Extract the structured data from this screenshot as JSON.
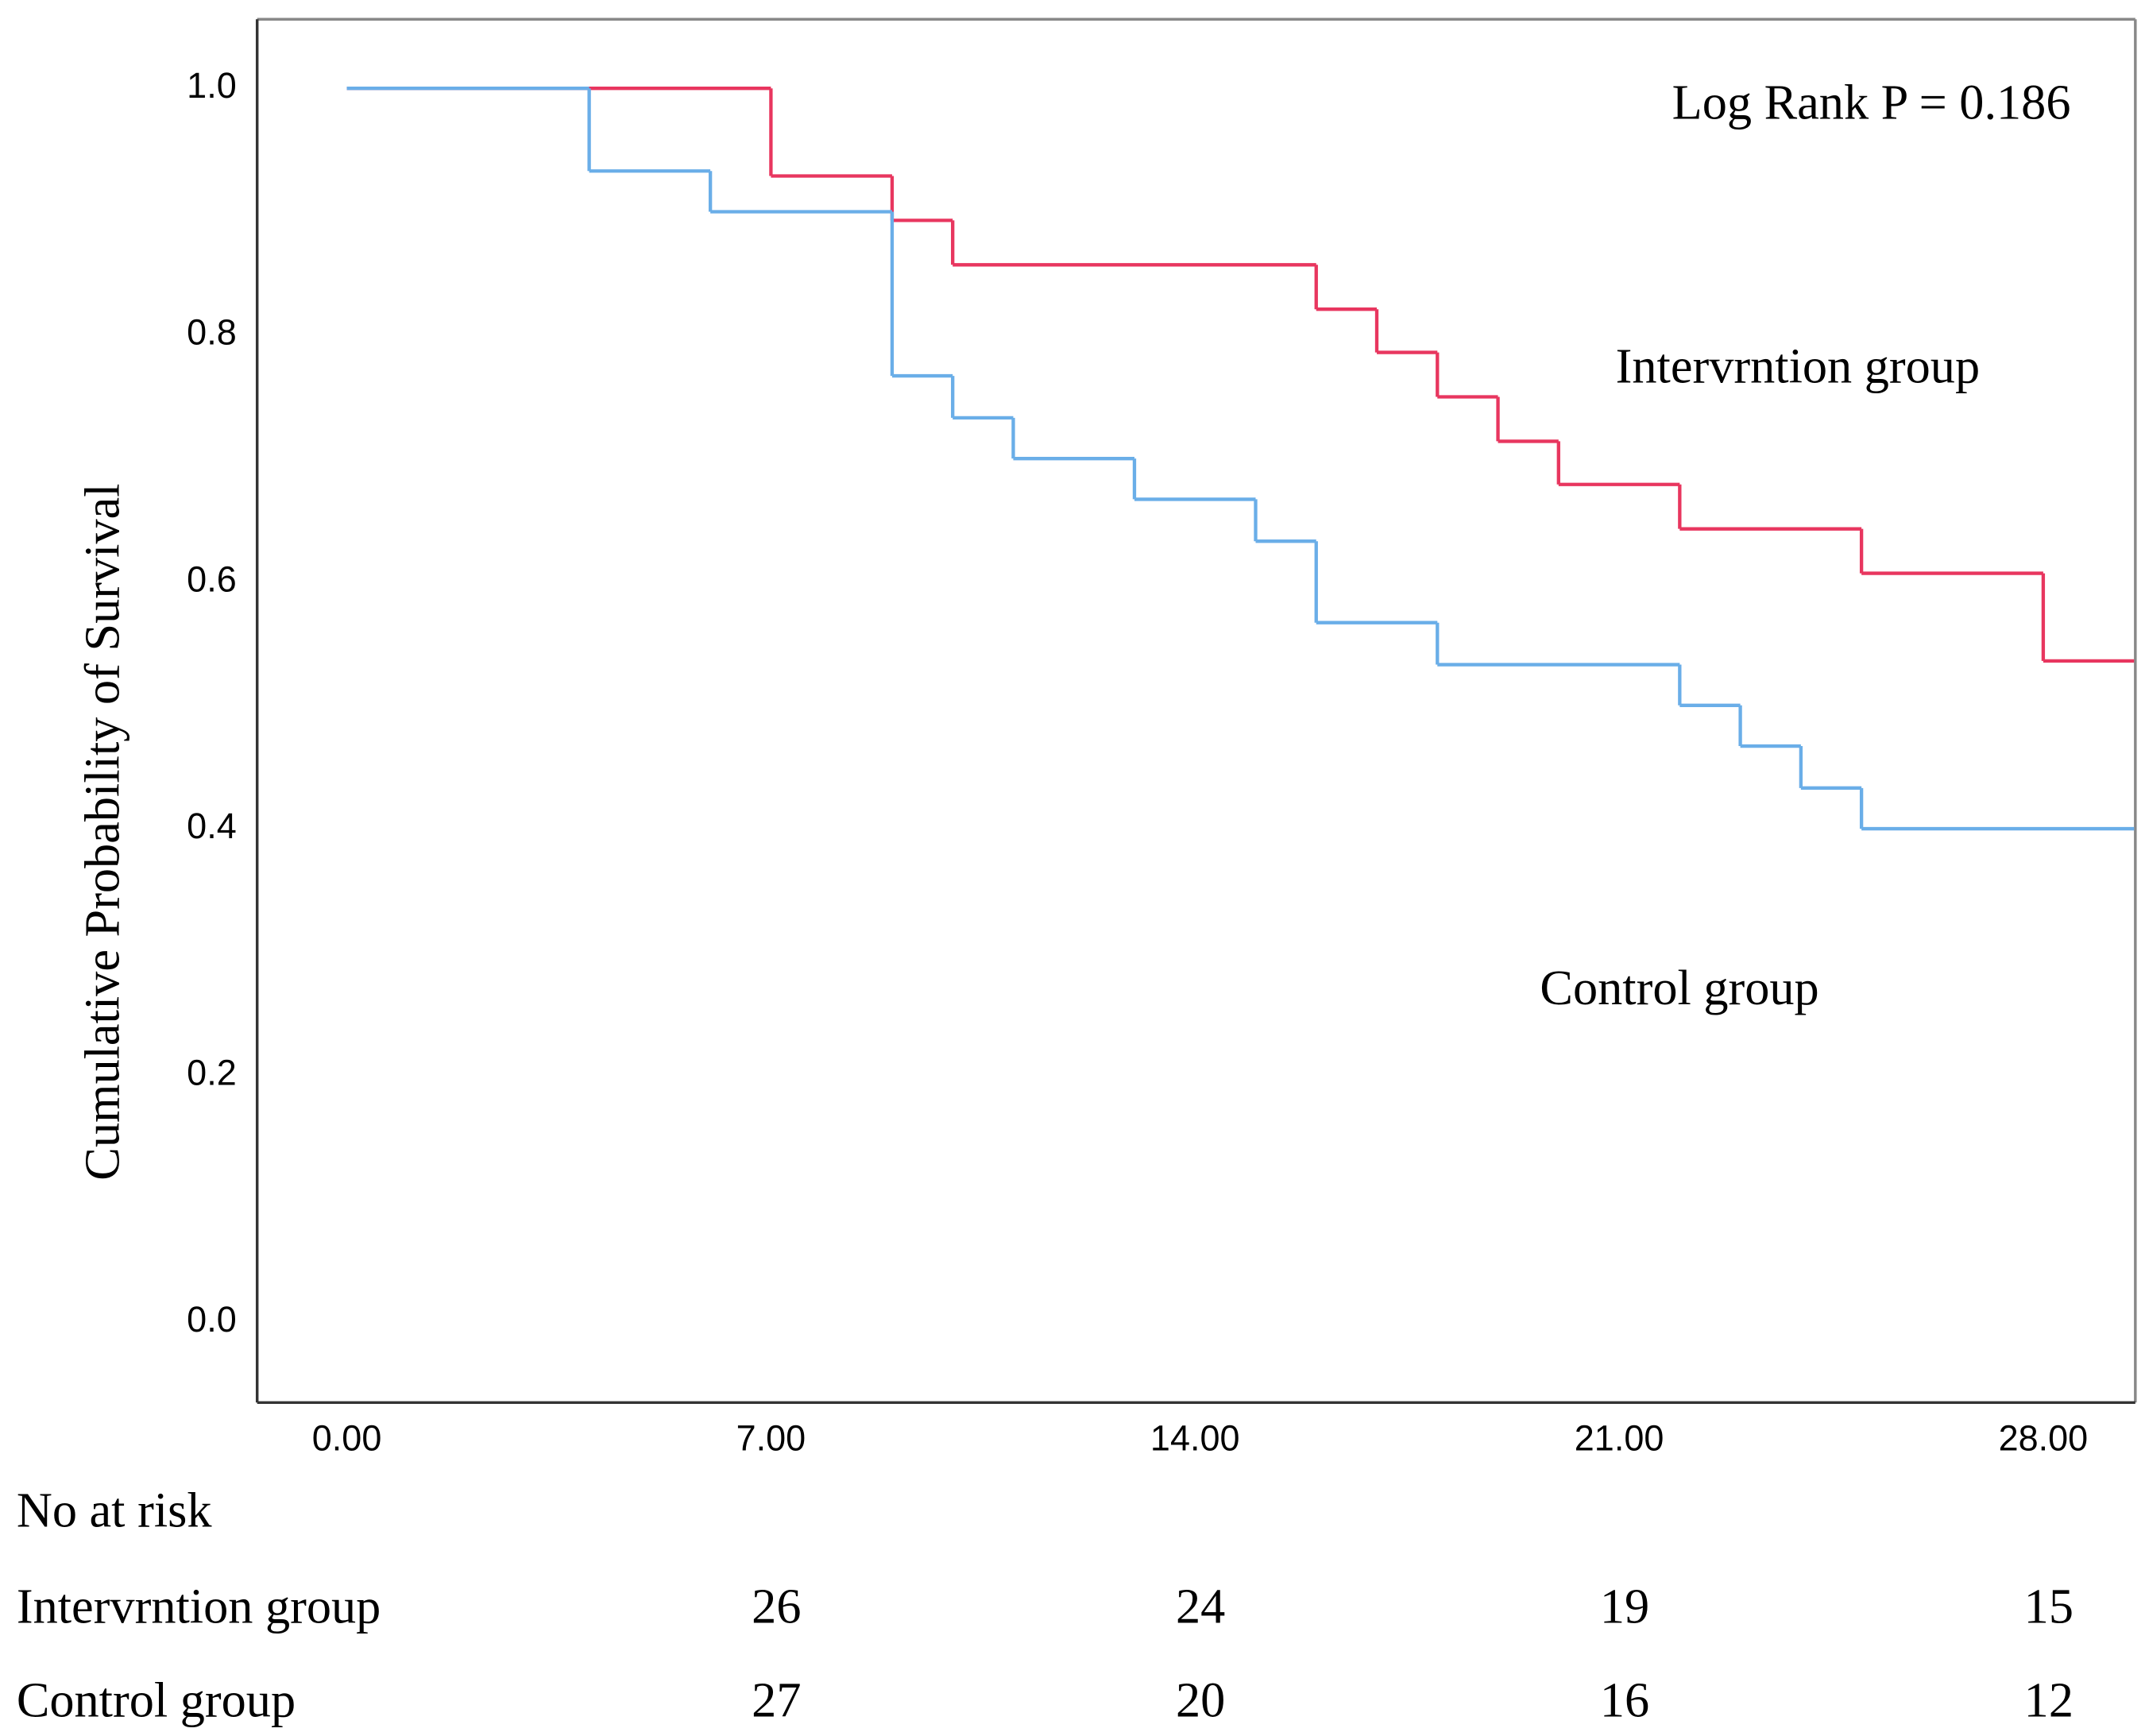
{
  "chart_data": {
    "type": "step",
    "annotation": "Log Rank P = 0.186",
    "ylabel": "Cumulative Probability of Survival",
    "xlim": [
      -1.48,
      29.52
    ],
    "ylim": [
      -0.065,
      1.056
    ],
    "xticks": [
      {
        "value": 0,
        "label": "0.00"
      },
      {
        "value": 7,
        "label": "7.00"
      },
      {
        "value": 14,
        "label": "14.00"
      },
      {
        "value": 21,
        "label": "21.00"
      },
      {
        "value": 28,
        "label": "28.00"
      }
    ],
    "yticks": [
      {
        "value": 0,
        "label": "0.0"
      },
      {
        "value": 0.2,
        "label": "0.2"
      },
      {
        "value": 0.4,
        "label": "0.4"
      },
      {
        "value": 0.6,
        "label": "0.6"
      },
      {
        "value": 0.8,
        "label": "0.8"
      },
      {
        "value": 1,
        "label": "1.0"
      }
    ],
    "series": [
      {
        "name": "Intervrntion group",
        "color": "#e8365f",
        "x": [
          0,
          7,
          9,
          10,
          16,
          17,
          18,
          19,
          20,
          22,
          25,
          28,
          29.5
        ],
        "values": [
          1.0,
          0.929,
          0.893,
          0.857,
          0.821,
          0.786,
          0.75,
          0.714,
          0.679,
          0.643,
          0.607,
          0.536,
          0.536
        ]
      },
      {
        "name": "Control group",
        "color": "#6aaee8",
        "x": [
          0,
          4,
          6,
          9,
          10,
          11,
          13,
          15,
          16,
          18,
          22,
          23,
          24,
          25,
          29.5
        ],
        "values": [
          1.0,
          0.933,
          0.9,
          0.767,
          0.733,
          0.7,
          0.667,
          0.633,
          0.567,
          0.533,
          0.5,
          0.467,
          0.433,
          0.4,
          0.4
        ]
      }
    ],
    "risk_table": {
      "title": "No at risk",
      "values": [
        [
          26,
          24,
          19,
          15
        ],
        [
          27,
          20,
          16,
          12
        ]
      ]
    }
  }
}
